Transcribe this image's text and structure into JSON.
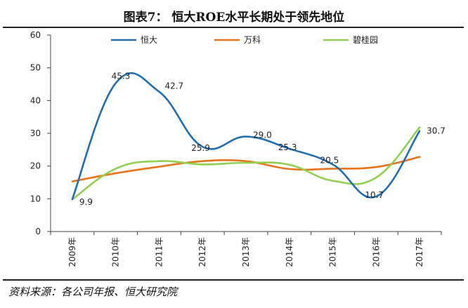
{
  "title": "图表7： 恒大ROE水平长期处于领先地位",
  "source": "资料来源：各公司年报、恒大研究院",
  "colors": {
    "hengda": "#1f6fb5",
    "vanke": "#e8731a",
    "bgy": "#92cf50"
  },
  "chart_data": {
    "type": "line",
    "title": "图表7： 恒大ROE水平长期处于领先地位",
    "xlabel": "",
    "ylabel": "",
    "ylim": [
      0,
      60
    ],
    "yticks": [
      0,
      10,
      20,
      30,
      40,
      50,
      60
    ],
    "grid": false,
    "legend": "top",
    "categories": [
      "2009年",
      "2010年",
      "2011年",
      "2012年",
      "2013年",
      "2014年",
      "2015年",
      "2016年",
      "2017年"
    ],
    "series": [
      {
        "name": "恒大",
        "color": "#1f6fb5",
        "values": [
          9.9,
          45.3,
          42.7,
          25.9,
          29.0,
          25.3,
          20.5,
          10.7,
          30.7
        ],
        "labels": [
          "9.9",
          "45.3",
          "42.7",
          "25.9",
          "29.0",
          "25.3",
          "20.5",
          "10.7",
          "30.7"
        ]
      },
      {
        "name": "万科",
        "color": "#e8731a",
        "values": [
          15.3,
          17.8,
          19.8,
          21.5,
          21.5,
          19.1,
          19.2,
          19.7,
          22.8
        ]
      },
      {
        "name": "碧桂园",
        "color": "#92cf50",
        "values": [
          9.8,
          19.2,
          21.5,
          20.5,
          21.0,
          20.4,
          15.5,
          16.5,
          31.8
        ]
      }
    ]
  }
}
